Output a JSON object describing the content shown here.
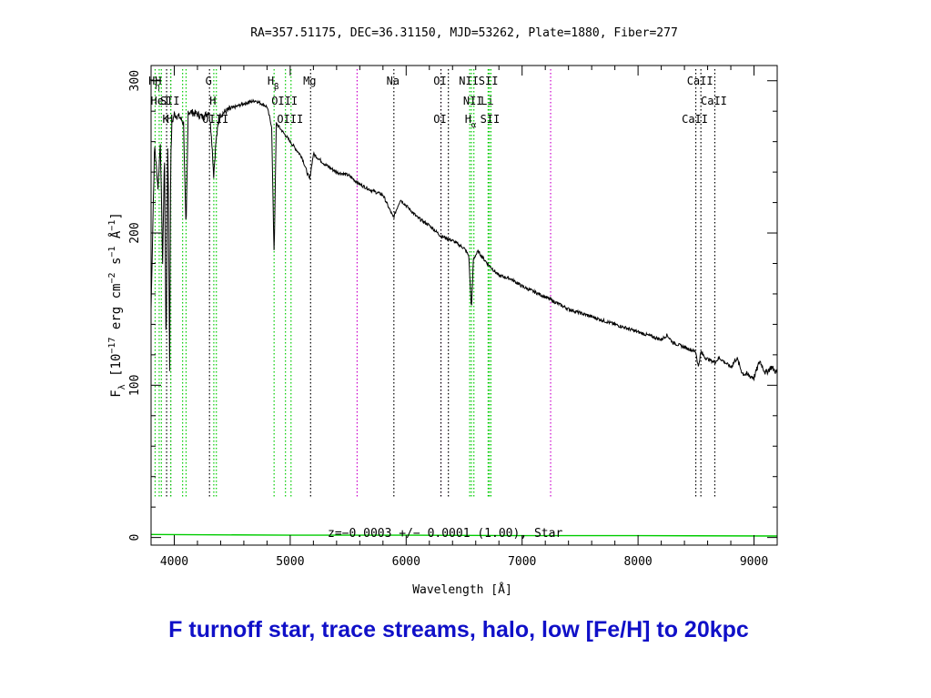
{
  "caption": "F turnoff star, trace streams, halo, low [Fe/H] to 20kpc",
  "chart_data": {
    "type": "line",
    "title": "RA=357.51175, DEC=36.31150, MJD=53262, Plate=1880, Fiber=277",
    "xlabel": "Wavelength [Å]",
    "ylabel_parts": [
      "F",
      "λ",
      " [10",
      "−17",
      " erg cm",
      "−2",
      " s",
      "−1",
      " Å",
      "−1",
      "]"
    ],
    "xlim": [
      3800,
      9200
    ],
    "ylim": [
      -5,
      310
    ],
    "xticks": [
      4000,
      5000,
      6000,
      7000,
      8000,
      9000
    ],
    "yticks": [
      0,
      100,
      200,
      300
    ],
    "annotation": "z=−0.0003 +/− 0.0001 (1.00), Star",
    "colors": {
      "flux": "#000000",
      "error": "#00cc00",
      "emission": "#00cc00",
      "absorption": "#000000",
      "sky": "#cc00cc"
    },
    "flux_series": {
      "x": [
        3800,
        3830,
        3860,
        3880,
        3900,
        3915,
        3930,
        3945,
        3960,
        3969,
        3980,
        4000,
        4050,
        4080,
        4102,
        4120,
        4200,
        4250,
        4300,
        4320,
        4340,
        4360,
        4380,
        4400,
        4500,
        4600,
        4700,
        4800,
        4840,
        4861,
        4880,
        4920,
        5000,
        5100,
        5167,
        5200,
        5300,
        5400,
        5500,
        5600,
        5700,
        5800,
        5890,
        5950,
        6000,
        6100,
        6200,
        6300,
        6400,
        6500,
        6540,
        6563,
        6580,
        6620,
        6700,
        6800,
        6900,
        7000,
        7200,
        7400,
        7600,
        7800,
        8000,
        8200,
        8250,
        8300,
        8400,
        8498,
        8520,
        8542,
        8580,
        8662,
        8700,
        8800,
        8850,
        8900,
        9000,
        9050,
        9100,
        9150,
        9200
      ],
      "y": [
        150,
        258,
        230,
        260,
        180,
        255,
        120,
        265,
        110,
        245,
        272,
        278,
        276,
        272,
        200,
        280,
        278,
        276,
        280,
        265,
        238,
        260,
        272,
        278,
        282,
        285,
        287,
        283,
        270,
        185,
        272,
        268,
        260,
        250,
        235,
        252,
        245,
        240,
        238,
        232,
        228,
        225,
        210,
        222,
        218,
        210,
        205,
        198,
        195,
        190,
        185,
        150,
        183,
        188,
        180,
        172,
        170,
        165,
        158,
        150,
        145,
        140,
        135,
        130,
        133,
        128,
        125,
        122,
        112,
        122,
        118,
        115,
        118,
        112,
        118,
        108,
        105,
        116,
        108,
        112,
        108
      ]
    },
    "error_series": {
      "x": [
        3800,
        5000,
        6000,
        7000,
        8000,
        9200
      ],
      "y": [
        2,
        1.5,
        1.5,
        1.2,
        1.2,
        1
      ]
    },
    "lines": [
      {
        "wl": 3835,
        "label": "H",
        "sub": "η",
        "row": 1,
        "kind": "emission"
      },
      {
        "wl": 3870,
        "label": "H",
        "row": 1,
        "kind": "emission"
      },
      {
        "wl": 3889,
        "label": "HeI",
        "row": 2,
        "kind": "emission"
      },
      {
        "wl": 3934,
        "label": "K",
        "row": 3,
        "kind": "absorption"
      },
      {
        "wl": 3969,
        "label": "H",
        "row": 3,
        "kind": "absorption"
      },
      {
        "wl": 3970,
        "label": "SII",
        "row": 2,
        "kind": "emission"
      },
      {
        "wl": 4072,
        "label": "",
        "row": 0,
        "kind": "emission"
      },
      {
        "wl": 4102,
        "label": "",
        "row": 0,
        "kind": "emission"
      },
      {
        "wl": 4304,
        "label": "G",
        "row": 1,
        "kind": "absorption"
      },
      {
        "wl": 4341,
        "label": "H",
        "row": 2,
        "kind": "emission"
      },
      {
        "wl": 4363,
        "label": "OIII",
        "row": 3,
        "kind": "emission"
      },
      {
        "wl": 4861,
        "label": "H",
        "sub": "β",
        "row": 1,
        "kind": "emission"
      },
      {
        "wl": 4959,
        "label": "OIII",
        "row": 2,
        "kind": "emission"
      },
      {
        "wl": 5007,
        "label": "OIII",
        "row": 3,
        "kind": "emission"
      },
      {
        "wl": 5176,
        "label": "Mg",
        "row": 1,
        "kind": "absorption"
      },
      {
        "wl": 5577,
        "label": "",
        "row": 0,
        "kind": "sky"
      },
      {
        "wl": 5894,
        "label": "Na",
        "row": 1,
        "kind": "absorption"
      },
      {
        "wl": 6300,
        "label": "OI",
        "row": 1,
        "kind": "sky"
      },
      {
        "wl": 6300,
        "label": "OI",
        "row": 3,
        "kind": "absorption"
      },
      {
        "wl": 6364,
        "label": "",
        "row": 0,
        "kind": "absorption"
      },
      {
        "wl": 6548,
        "label": "NII",
        "row": 1,
        "kind": "emission"
      },
      {
        "wl": 6563,
        "label": "H",
        "sub": "α",
        "row": 3,
        "kind": "emission"
      },
      {
        "wl": 6584,
        "label": "NII",
        "row": 2,
        "kind": "emission"
      },
      {
        "wl": 6707,
        "label": "Li",
        "row": 2,
        "kind": "emission"
      },
      {
        "wl": 6717,
        "label": "SII",
        "row": 1,
        "kind": "emission"
      },
      {
        "wl": 6731,
        "label": "SII",
        "row": 3,
        "kind": "emission"
      },
      {
        "wl": 7246,
        "label": "",
        "row": 0,
        "kind": "sky"
      },
      {
        "wl": 8498,
        "label": "CaII",
        "row": 3,
        "kind": "absorption"
      },
      {
        "wl": 8542,
        "label": "CaII",
        "row": 1,
        "kind": "absorption"
      },
      {
        "wl": 8662,
        "label": "CaII",
        "row": 2,
        "kind": "absorption"
      }
    ]
  }
}
